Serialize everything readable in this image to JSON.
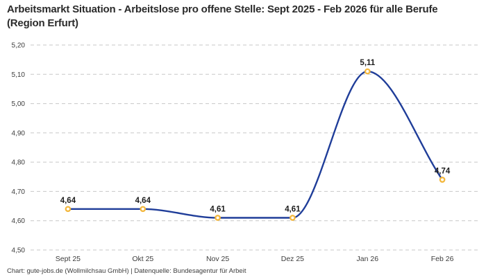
{
  "header": {
    "title": "Arbeitsmarkt Situation - Arbeitslose pro offene Stelle: Sept 2025 - Feb 2026 für alle Berufe (Region Erfurt)"
  },
  "footer": {
    "credit": "Chart: gute-jobs.de (Wollmilchsau GmbH) | Datenquelle: Bundesagentur für Arbeit"
  },
  "colors": {
    "grid": "#c7c7c7",
    "line": "#1f3d99",
    "marker": "#f3b73c",
    "title_text": "#2b2b2b",
    "axis_text": "#3c3c3c",
    "label_text": "#1d1d1d",
    "background": "#ffffff"
  },
  "chart_data": {
    "type": "line",
    "title": "Arbeitsmarkt Situation - Arbeitslose pro offene Stelle: Sept 2025 - Feb 2026 für alle Berufe (Region Erfurt)",
    "categories": [
      "Sept 25",
      "Okt 25",
      "Nov 25",
      "Dez 25",
      "Jan 26",
      "Feb 26"
    ],
    "values": [
      4.64,
      4.64,
      4.61,
      4.61,
      5.11,
      4.74
    ],
    "point_labels": [
      "4,64",
      "4,64",
      "4,61",
      "4,61",
      "5,11",
      "4,74"
    ],
    "xlabel": "",
    "ylabel": "",
    "ylim": [
      4.5,
      5.2
    ],
    "y_ticks": [
      {
        "value": 5.2,
        "label": "5,20"
      },
      {
        "value": 5.1,
        "label": "5,10"
      },
      {
        "value": 5.0,
        "label": "5,00"
      },
      {
        "value": 4.9,
        "label": "4,90"
      },
      {
        "value": 4.8,
        "label": "4,80"
      },
      {
        "value": 4.7,
        "label": "4,70"
      },
      {
        "value": 4.6,
        "label": "4,60"
      },
      {
        "value": 4.5,
        "label": "4,50"
      }
    ],
    "grid": "horizontal-dashed",
    "legend": "none",
    "smooth": true,
    "line_color": "#1f3d99",
    "marker_color": "#f3b73c",
    "marker_fill": "#ffffff"
  }
}
